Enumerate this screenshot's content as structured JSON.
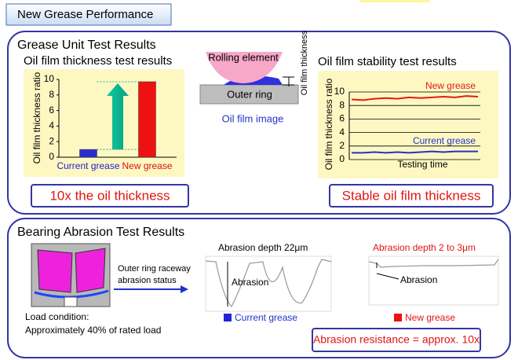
{
  "header": {
    "title": "New Grease Performance"
  },
  "unit_test": {
    "title": "Grease Unit Test Results",
    "diagram": {
      "rolling_element": "Rolling element",
      "outer_ring": "Outer ring",
      "oil_film": "Oil film thickness",
      "caption": "Oil film image"
    },
    "bar_callout": "10x the oil thickness",
    "line_callout": "Stable oil film thickness"
  },
  "abrasion_test": {
    "title": "Bearing Abrasion Test Results",
    "arrow_text": [
      "Outer ring raceway",
      "abrasion status"
    ],
    "load": [
      "Load condition:",
      "Approximately 40% of rated load"
    ],
    "current": {
      "depth": "Abrasion depth 22μm",
      "label": "Abrasion",
      "legend": "Current grease"
    },
    "new": {
      "depth": "Abrasion depth 2  to 3μm",
      "label": "Abrasion",
      "legend": "New grease"
    },
    "callout": "Abrasion resistance = approx. 10x"
  },
  "chart_data": [
    {
      "type": "bar",
      "title": "Oil film thickness test results",
      "y_label": "Oil film thickness ratio",
      "categories": [
        "Current grease",
        "New grease"
      ],
      "values": [
        1,
        9.7
      ],
      "colors": [
        "#2b2bd0",
        "#ee1111"
      ],
      "label_colors": [
        "#2222cc",
        "#dd1111"
      ],
      "ylim": [
        0,
        10
      ],
      "yticks": [
        0,
        2,
        4,
        6,
        8,
        10
      ],
      "grid": false
    },
    {
      "type": "line",
      "title": "Oil film stability test results",
      "y_label": "Oil film thickness ratio",
      "x_label": "Testing time",
      "series": [
        {
          "name": "New grease",
          "color": "#e21a1a",
          "values": [
            8.9,
            8.8,
            9.0,
            9.1,
            9.0,
            9.2,
            9.1,
            9.2,
            9.3,
            9.2,
            9.4,
            9.3
          ]
        },
        {
          "name": "Current grease",
          "color": "#2233cc",
          "values": [
            1.0,
            1.0,
            1.1,
            1.0,
            1.1,
            1.0,
            1.1,
            1.2,
            1.1,
            1.2,
            1.2,
            1.2
          ]
        }
      ],
      "ylim": [
        0,
        10
      ],
      "yticks": [
        0,
        2,
        4,
        6,
        8,
        10
      ],
      "grid": true
    }
  ]
}
